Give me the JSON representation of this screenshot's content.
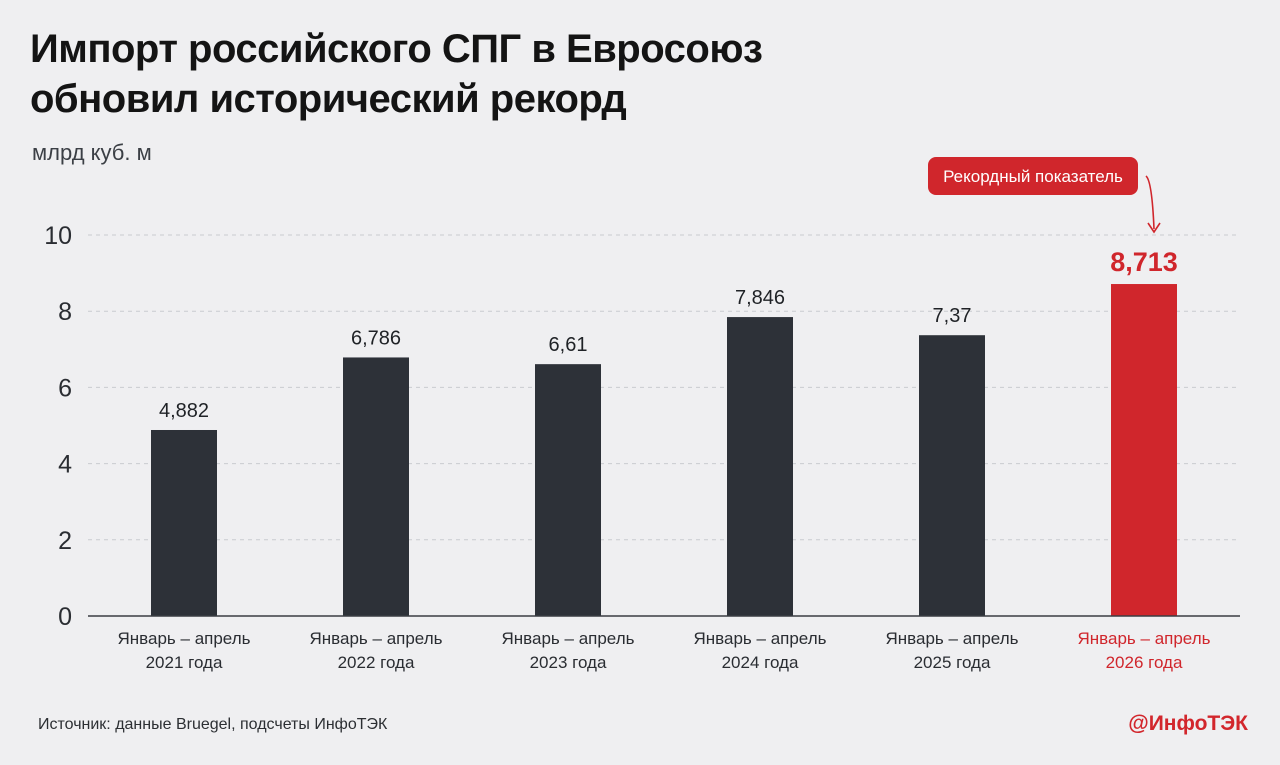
{
  "header": {
    "title_line1": "Импорт российского СПГ в Евросоюз",
    "title_line2": "обновил исторический рекорд",
    "unit": "млрд куб. м"
  },
  "footer": {
    "source": "Источник: данные Bruegel, подсчеты ИнфоТЭК",
    "brand": "@ИнфоТЭК"
  },
  "colors": {
    "bar": "#2d3138",
    "highlight": "#d0262c",
    "grid": "#c9cbd0",
    "axis": "#3a3d42"
  },
  "chart_data": {
    "type": "bar",
    "title": "Импорт российского СПГ в Евросоюз обновил исторический рекорд",
    "ylabel": "млрд куб. м",
    "ylim": [
      0,
      10
    ],
    "yticks": [
      "0",
      "2",
      "4",
      "6",
      "8",
      "10"
    ],
    "grid": true,
    "categories": [
      [
        "Январь – апрель",
        "2021 года"
      ],
      [
        "Январь – апрель",
        "2022 года"
      ],
      [
        "Январь – апрель",
        "2023 года"
      ],
      [
        "Январь – апрель",
        "2024 года"
      ],
      [
        "Январь – апрель",
        "2025 года"
      ],
      [
        "Январь – апрель",
        "2026 года"
      ]
    ],
    "values": [
      4.882,
      6.786,
      6.61,
      7.846,
      7.37,
      8.713
    ],
    "labels": [
      "4,882",
      "6,786",
      "6,61",
      "7,846",
      "7,37",
      "8,713"
    ],
    "highlight_index": 5,
    "annotation": {
      "text": "Рекордный показатель",
      "target_index": 5
    }
  }
}
